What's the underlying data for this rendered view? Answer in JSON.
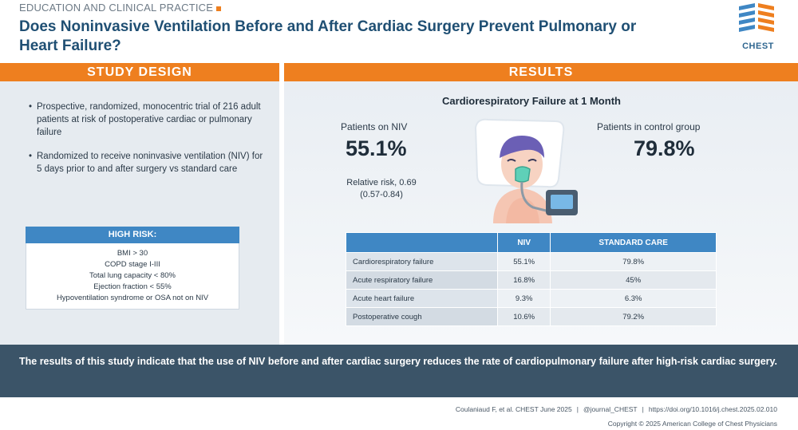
{
  "header": {
    "eyebrow": "EDUCATION AND CLINICAL PRACTICE",
    "title": "Does Noninvasive Ventilation Before and After Cardiac Surgery Prevent Pulmonary or Heart Failure?",
    "logo_text": "CHEST"
  },
  "study_design": {
    "heading": "STUDY DESIGN",
    "bullets": [
      "Prospective, randomized, monocentric trial of 216 adult patients at risk of postoperative cardiac or pulmonary failure",
      "Randomized to receive noninvasive ventilation (NIV) for 5 days prior to and after surgery vs standard care"
    ],
    "high_risk": {
      "heading": "HIGH RISK:",
      "items": [
        "BMI > 30",
        "COPD stage I-III",
        "Total lung capacity < 80%",
        "Ejection fraction < 55%",
        "Hypoventilation syndrome or OSA not on NIV"
      ]
    }
  },
  "results": {
    "heading": "RESULTS",
    "subtitle": "Cardiorespiratory Failure at 1 Month",
    "niv_label": "Patients on NIV",
    "niv_value": "55.1%",
    "relative_risk_line1": "Relative risk, 0.69",
    "relative_risk_line2": "(0.57-0.84)",
    "control_label": "Patients in control group",
    "control_value": "79.8%",
    "table": {
      "headers": [
        "",
        "NIV",
        "STANDARD CARE"
      ],
      "rows": [
        [
          "Cardiorespiratory failure",
          "55.1%",
          "79.8%"
        ],
        [
          "Acute respiratory failure",
          "16.8%",
          "45%"
        ],
        [
          "Acute heart failure",
          "9.3%",
          "6.3%"
        ],
        [
          "Postoperative cough",
          "10.6%",
          "79.2%"
        ]
      ]
    }
  },
  "conclusion": "The results of this study indicate that the use of NIV before and after cardiac surgery reduces the rate of cardiopulmonary failure after high-risk cardiac surgery.",
  "footer": {
    "citation": "Coulaniaud F, et al. CHEST June 2025",
    "handle": "@journal_CHEST",
    "doi": "https://doi.org/10.1016/j.chest.2025.02.010",
    "copyright": "Copyright © 2025 American College of Chest Physicians"
  },
  "colors": {
    "orange": "#ee7f1f",
    "blue": "#3f87c4",
    "navy": "#3b5468",
    "title": "#1f4f73"
  }
}
